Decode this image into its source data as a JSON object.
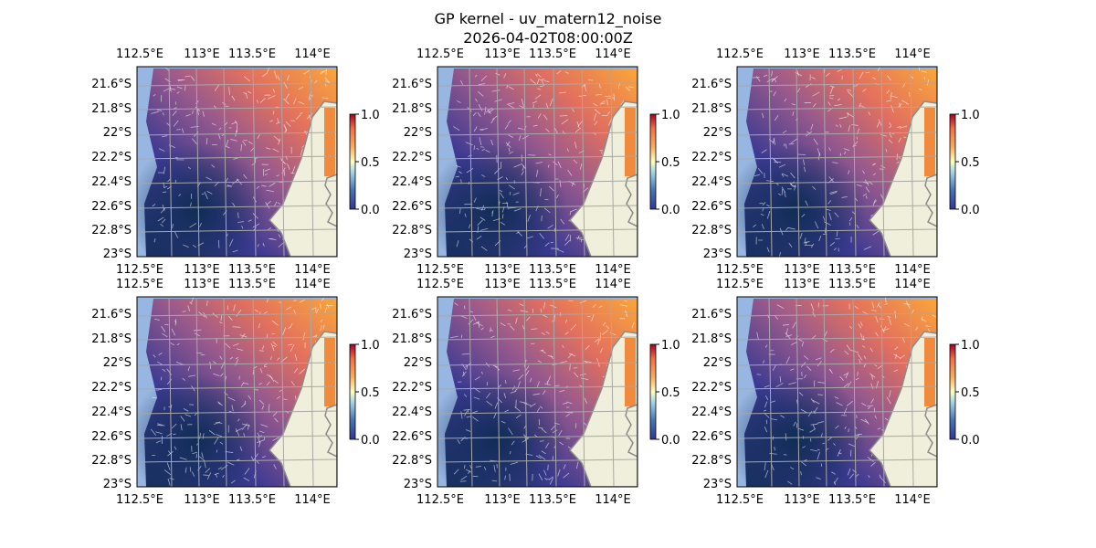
{
  "chart_data": {
    "type": "heatmap",
    "title": "GP kernel - uv_matern12_noise",
    "subtitle": "2026-04-02T08:00:00Z",
    "panels": 6,
    "lon_ticks": [
      "112.5°E",
      "113°E",
      "113.5°E",
      "114°E"
    ],
    "lat_ticks": [
      "21.6°S",
      "21.8°S",
      "22°S",
      "22.2°S",
      "22.4°S",
      "22.6°S",
      "22.8°S",
      "23°S"
    ],
    "colorbar": {
      "ticks": [
        "0.0",
        "0.5",
        "1.0"
      ],
      "range": [
        0,
        1
      ],
      "colormap": "RdYlBu_r"
    },
    "overlay": "velocity quiver arrows"
  },
  "colors": {
    "ocean": "#97b6e1",
    "land": "#efefdb",
    "coast": "#8a8a8a",
    "grid": "#a8a8a8"
  }
}
